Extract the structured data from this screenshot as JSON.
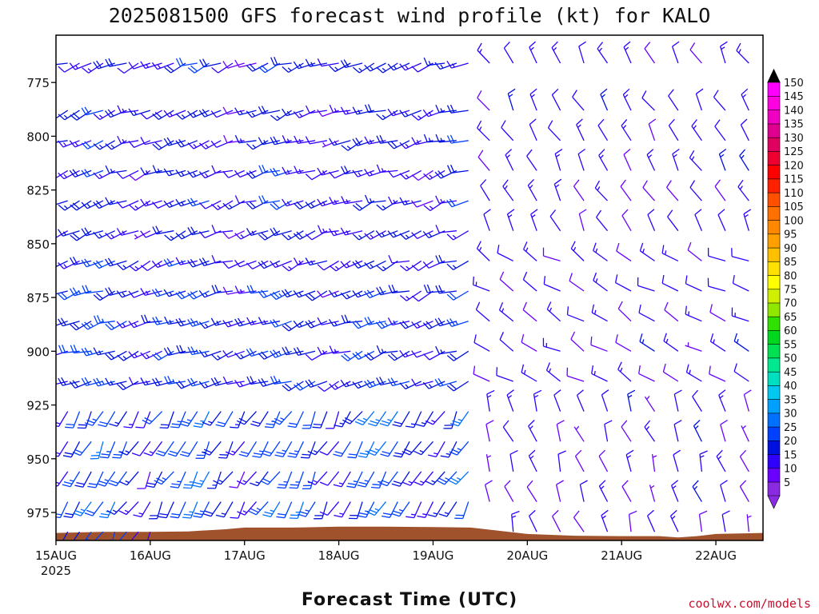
{
  "chart_data": {
    "type": "wind_barb_time_height",
    "title": "2025081500 GFS forecast wind profile (kt) for KALO",
    "xlabel": "Forecast Time (UTC)",
    "ylabel": "",
    "credit": "coolwx.com/models",
    "x_ticks": [
      {
        "label": "15AUG",
        "sub": "2025",
        "day": 0
      },
      {
        "label": "16AUG",
        "sub": "",
        "day": 1
      },
      {
        "label": "17AUG",
        "sub": "",
        "day": 2
      },
      {
        "label": "18AUG",
        "sub": "",
        "day": 3
      },
      {
        "label": "19AUG",
        "sub": "",
        "day": 4
      },
      {
        "label": "20AUG",
        "sub": "",
        "day": 5
      },
      {
        "label": "21AUG",
        "sub": "",
        "day": 6
      },
      {
        "label": "22AUG",
        "sub": "",
        "day": 7
      }
    ],
    "y_ticks": [
      775,
      800,
      825,
      850,
      875,
      900,
      925,
      950,
      975
    ],
    "ylim_hpa": [
      753,
      988
    ],
    "xlim_days": [
      0,
      7.5
    ],
    "time_step_hours": {
      "before_day_4.4": 3,
      "after": 6
    },
    "levels_hpa": [
      766,
      788,
      802,
      816,
      830,
      844,
      858,
      872,
      886,
      900,
      914,
      928,
      942,
      956,
      970,
      984
    ],
    "colorbar": {
      "levels": [
        5,
        10,
        15,
        20,
        25,
        30,
        35,
        40,
        45,
        50,
        55,
        60,
        65,
        70,
        75,
        80,
        85,
        90,
        95,
        100,
        105,
        110,
        115,
        120,
        125,
        130,
        135,
        140,
        145,
        150
      ],
      "colors": [
        "#8a2be2",
        "#6a00ff",
        "#3000ff",
        "#0010e0",
        "#0040ff",
        "#0070ff",
        "#00a0ff",
        "#00c8f0",
        "#00e0c0",
        "#00e890",
        "#00e050",
        "#00d820",
        "#30e000",
        "#90e800",
        "#d0f000",
        "#ffff00",
        "#ffe000",
        "#ffc000",
        "#ffa000",
        "#ff8800",
        "#ff7000",
        "#ff5000",
        "#ff2000",
        "#ff0000",
        "#f00030",
        "#e00060",
        "#e00090",
        "#f000c0",
        "#ff00e0",
        "#ff00ff"
      ]
    },
    "surface_pressure_hpa": [
      [
        0.0,
        984.5
      ],
      [
        0.5,
        984.0
      ],
      [
        1.0,
        984.0
      ],
      [
        1.4,
        983.8
      ],
      [
        1.8,
        982.8
      ],
      [
        2.0,
        982.0
      ],
      [
        2.5,
        982.0
      ],
      [
        3.0,
        981.6
      ],
      [
        3.5,
        981.6
      ],
      [
        4.0,
        981.8
      ],
      [
        4.4,
        982.0
      ],
      [
        4.7,
        983.5
      ],
      [
        5.0,
        985.0
      ],
      [
        5.5,
        985.8
      ],
      [
        6.0,
        986.0
      ],
      [
        6.4,
        986.0
      ],
      [
        6.6,
        986.6
      ],
      [
        6.8,
        986.0
      ],
      [
        7.0,
        985.0
      ],
      [
        7.5,
        984.5
      ]
    ],
    "wind_regimes": [
      {
        "t_start": 0.0,
        "t_end": 4.4,
        "description": "westerly to west-southwesterly flow",
        "profile": [
          {
            "p_top": 870,
            "dir_deg": 250,
            "speed_kt": [
              10,
              20,
              12
            ]
          },
          {
            "p_top": 920,
            "dir_deg": 250,
            "speed_kt": [
              10,
              25,
              15
            ]
          },
          {
            "p_top": 988,
            "dir_deg": 210,
            "speed_kt": [
              10,
              30,
              15
            ]
          }
        ]
      },
      {
        "t_start": 4.4,
        "t_end": 7.5,
        "description": "north to northwesterly flow",
        "profile": [
          {
            "p_top": 850,
            "dir_deg": 330,
            "speed_kt": [
              10,
              12,
              10
            ]
          },
          {
            "p_top": 920,
            "dir_deg": 300,
            "speed_kt": [
              10,
              10,
              12
            ]
          },
          {
            "p_top": 988,
            "dir_deg": 340,
            "speed_kt": [
              8,
              12,
              10
            ]
          }
        ]
      }
    ]
  }
}
